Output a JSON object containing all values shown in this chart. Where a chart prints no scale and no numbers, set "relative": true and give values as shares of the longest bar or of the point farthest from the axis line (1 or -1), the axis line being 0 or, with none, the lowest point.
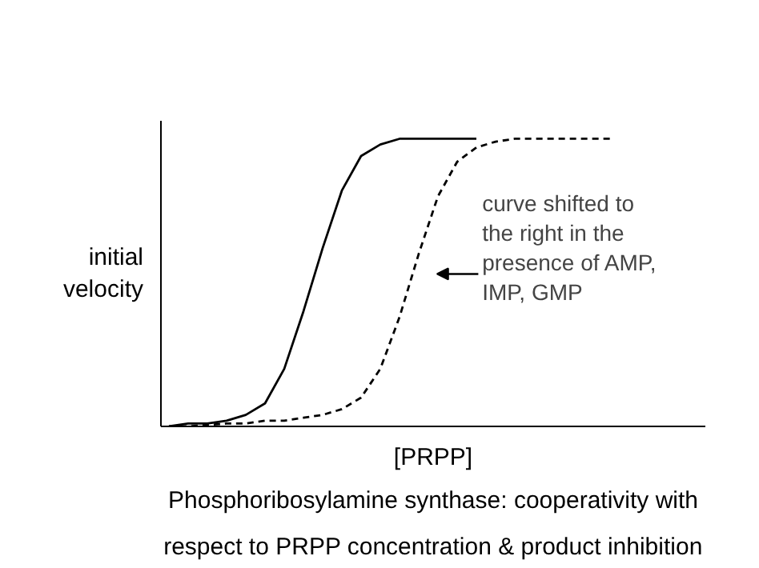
{
  "chart_data": {
    "type": "line",
    "relative": true,
    "title": "Phosphoribosylamine synthase: cooperativity with respect to PRPP concentration & product inhibition",
    "xlabel": "[PRPP]",
    "ylabel": "initial velocity",
    "categories": [
      null,
      null,
      null,
      null,
      null,
      null,
      null,
      null,
      null,
      null,
      null,
      null,
      null,
      null,
      null,
      null,
      null,
      null,
      null,
      null,
      null,
      null,
      null,
      null
    ],
    "series": [
      {
        "color": "#000000",
        "line_style": "solid",
        "values": [
          0,
          0.01,
          0.01,
          0.02,
          0.04,
          0.08,
          0.2,
          0.4,
          0.62,
          0.82,
          0.94,
          0.98,
          1,
          1,
          1,
          1,
          1,
          null,
          null,
          null,
          null,
          null,
          null,
          null
        ]
      },
      {
        "color": "#000000",
        "line_style": "dashed",
        "values": [
          0,
          0,
          0.005,
          0.01,
          0.01,
          0.02,
          0.02,
          0.03,
          0.04,
          0.06,
          0.1,
          0.2,
          0.38,
          0.6,
          0.8,
          0.92,
          0.97,
          0.99,
          1,
          1,
          1,
          1,
          1,
          1
        ]
      }
    ],
    "annotations": [
      "curve shifted to the right in the presence of AMP, IMP, GMP"
    ],
    "grid": false,
    "marker": "none"
  }
}
